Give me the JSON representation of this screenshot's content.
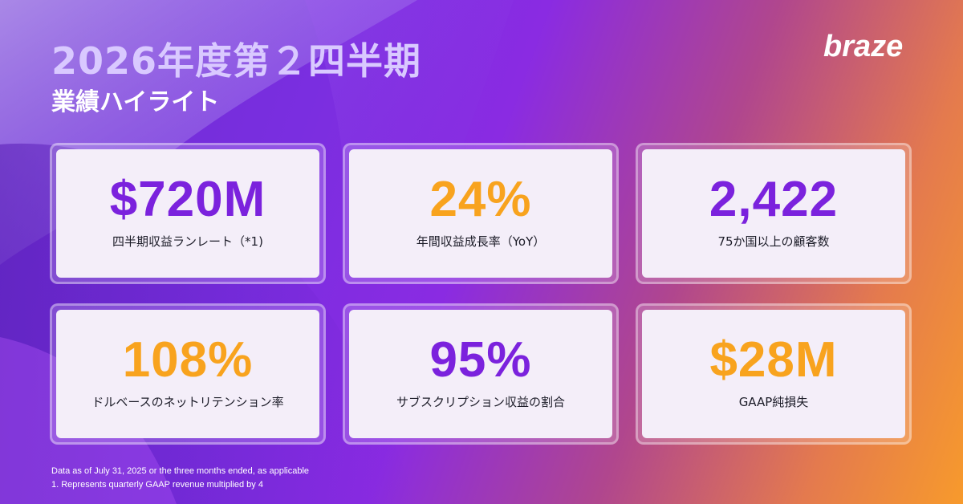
{
  "header": {
    "title": "2026年度第２四半期",
    "subtitle": "業績ハイライト",
    "logo_text": "braze"
  },
  "cards": [
    {
      "value": "$720M",
      "label": "四半期収益ランレート（*1)",
      "color": "#7b22dd"
    },
    {
      "value": "24%",
      "label": "年間収益成長率（YoY）",
      "color": "#f8a31e"
    },
    {
      "value": "2,422",
      "label": "75か国以上の顧客数",
      "color": "#7b22dd"
    },
    {
      "value": "108%",
      "label": "ドルベースのネットリテンション率",
      "color": "#f8a31e"
    },
    {
      "value": "95%",
      "label": "サブスクリプション収益の割合",
      "color": "#7b22dd"
    },
    {
      "value": "$28M",
      "label": "GAAP純損失",
      "color": "#f8a31e"
    }
  ],
  "footnotes": [
    "Data as of July 31, 2025 or the three months ended, as applicable",
    "1. Represents quarterly GAAP revenue multiplied by 4"
  ],
  "colors": {
    "accent_purple": "#7b22dd",
    "accent_orange": "#f8a31e",
    "card_background": "#f4eef9",
    "title_color": "#d9c9ff"
  }
}
